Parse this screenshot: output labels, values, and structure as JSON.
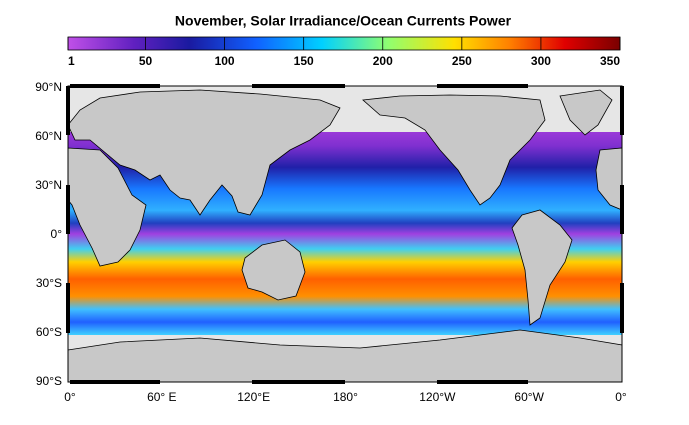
{
  "title": "November, Solar Irradiance/Ocean Currents Power",
  "colorbar": {
    "lim": [
      1,
      350
    ],
    "ticks": [
      1,
      50,
      100,
      150,
      200,
      250,
      300,
      350
    ]
  },
  "lat_labels": [
    "90°N",
    "60°N",
    "30°N",
    "0°",
    "30°S",
    "60°S",
    "90°S"
  ],
  "lon_labels": [
    "0°",
    "60° E",
    "120°E",
    "180°",
    "120°W",
    "60°W",
    "0°"
  ]
}
